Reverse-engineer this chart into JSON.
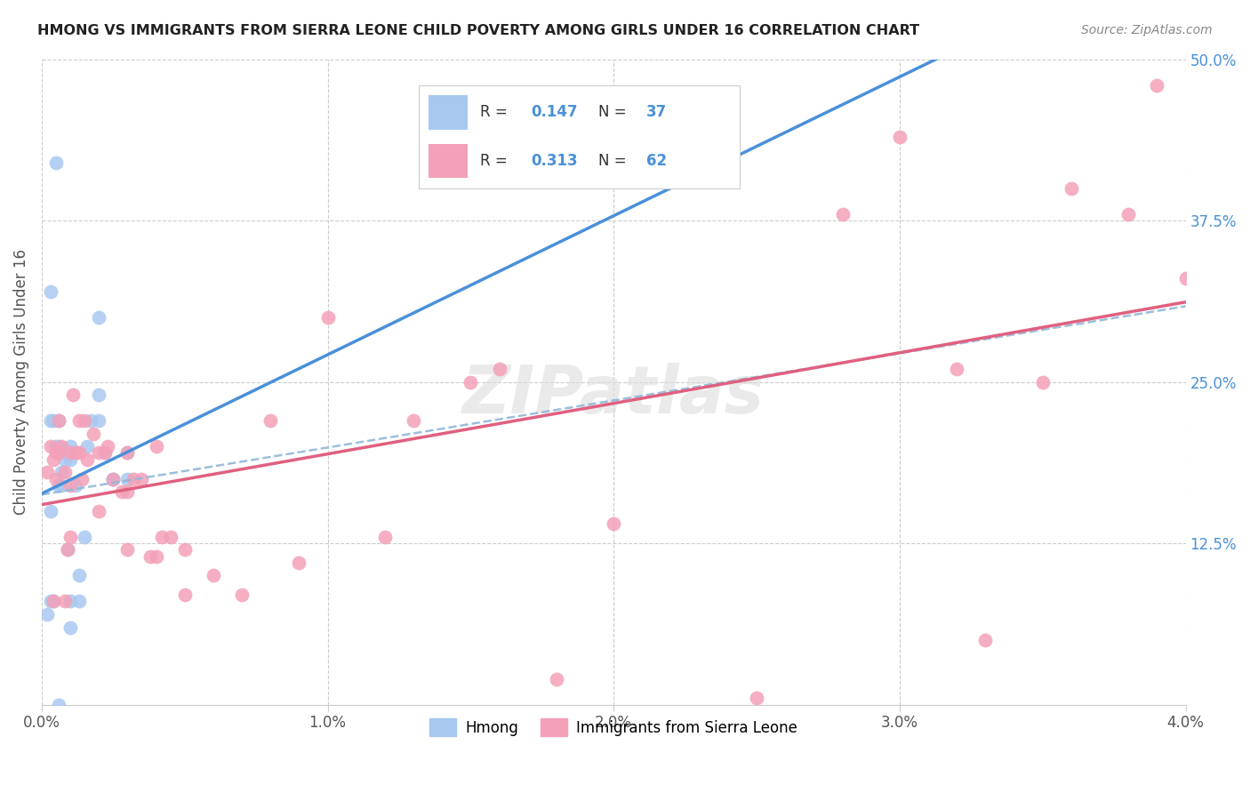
{
  "title": "HMONG VS IMMIGRANTS FROM SIERRA LEONE CHILD POVERTY AMONG GIRLS UNDER 16 CORRELATION CHART",
  "source": "Source: ZipAtlas.com",
  "ylabel": "Child Poverty Among Girls Under 16",
  "xmin": 0.0,
  "xmax": 0.04,
  "ymin": 0.0,
  "ymax": 0.5,
  "yticks": [
    0.0,
    0.125,
    0.25,
    0.375,
    0.5
  ],
  "ytick_labels": [
    "",
    "12.5%",
    "25.0%",
    "37.5%",
    "50.0%"
  ],
  "xticks": [
    0.0,
    0.01,
    0.02,
    0.03,
    0.04
  ],
  "xtick_labels": [
    "0.0%",
    "1.0%",
    "2.0%",
    "3.0%",
    "4.0%"
  ],
  "hmong_R": 0.147,
  "hmong_N": 37,
  "sierra_leone_R": 0.313,
  "sierra_leone_N": 62,
  "hmong_color": "#a8c8f0",
  "sierra_leone_color": "#f4a0b8",
  "hmong_line_color": "#4a90d9",
  "sierra_leone_line_color": "#e06080",
  "dashed_line_color": "#90b8d8",
  "legend_label_hmong": "Hmong",
  "legend_label_sierra": "Immigrants from Sierra Leone",
  "watermark": "ZIPatlas",
  "hmong_x": [
    0.0003,
    0.0003,
    0.0003,
    0.0004,
    0.0005,
    0.0006,
    0.0006,
    0.0006,
    0.0007,
    0.0007,
    0.0008,
    0.0009,
    0.001,
    0.001,
    0.001,
    0.001,
    0.0012,
    0.0013,
    0.0013,
    0.0015,
    0.0016,
    0.0017,
    0.002,
    0.002,
    0.0022,
    0.0025,
    0.0025,
    0.003,
    0.003,
    0.002,
    0.0005,
    0.0003,
    0.0006,
    0.0004,
    0.001,
    0.0008,
    0.0002
  ],
  "hmong_y": [
    0.08,
    0.15,
    0.22,
    0.08,
    0.2,
    0.22,
    0.2,
    0.17,
    0.18,
    0.17,
    0.19,
    0.12,
    0.2,
    0.195,
    0.19,
    0.06,
    0.17,
    0.1,
    0.08,
    0.13,
    0.2,
    0.22,
    0.22,
    0.24,
    0.195,
    0.175,
    0.175,
    0.195,
    0.175,
    0.3,
    0.42,
    0.32,
    0.0,
    0.22,
    0.08,
    0.195,
    0.07
  ],
  "sierra_leone_x": [
    0.0002,
    0.0003,
    0.0004,
    0.0005,
    0.0005,
    0.0006,
    0.0007,
    0.0008,
    0.0009,
    0.001,
    0.001,
    0.001,
    0.0011,
    0.0012,
    0.0013,
    0.0014,
    0.0015,
    0.0016,
    0.0018,
    0.002,
    0.002,
    0.0022,
    0.0023,
    0.0025,
    0.0028,
    0.003,
    0.003,
    0.003,
    0.0032,
    0.0035,
    0.0038,
    0.004,
    0.004,
    0.0042,
    0.0045,
    0.005,
    0.005,
    0.006,
    0.007,
    0.008,
    0.009,
    0.01,
    0.012,
    0.013,
    0.015,
    0.016,
    0.018,
    0.02,
    0.025,
    0.028,
    0.03,
    0.032,
    0.033,
    0.035,
    0.036,
    0.038,
    0.039,
    0.04,
    0.0004,
    0.0006,
    0.0008,
    0.0013
  ],
  "sierra_leone_y": [
    0.18,
    0.2,
    0.19,
    0.195,
    0.175,
    0.22,
    0.2,
    0.18,
    0.12,
    0.195,
    0.17,
    0.13,
    0.24,
    0.195,
    0.22,
    0.175,
    0.22,
    0.19,
    0.21,
    0.195,
    0.15,
    0.195,
    0.2,
    0.175,
    0.165,
    0.195,
    0.165,
    0.12,
    0.175,
    0.175,
    0.115,
    0.115,
    0.2,
    0.13,
    0.13,
    0.12,
    0.085,
    0.1,
    0.085,
    0.22,
    0.11,
    0.3,
    0.13,
    0.22,
    0.25,
    0.26,
    0.02,
    0.14,
    0.005,
    0.38,
    0.44,
    0.26,
    0.05,
    0.25,
    0.4,
    0.38,
    0.48,
    0.33,
    0.08,
    0.195,
    0.08,
    0.195
  ]
}
